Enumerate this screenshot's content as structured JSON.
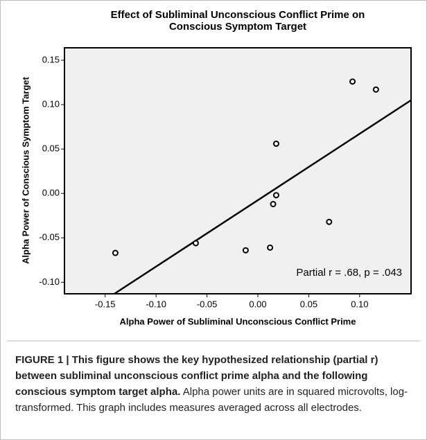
{
  "chart_data": {
    "type": "scatter",
    "title": "Effect of Subliminal Unconscious Conflict Prime on Conscious Symptom Target",
    "xlabel": "Alpha Power of Subliminal Unconscious Conflict  Prime",
    "ylabel": "Alpha Power of Conscious Symptom Target",
    "annotation": "Partial r = .68, p = .043",
    "x": [
      -0.14,
      -0.061,
      -0.012,
      0.012,
      0.015,
      0.018,
      0.018,
      0.07,
      0.093,
      0.116
    ],
    "y": [
      -0.067,
      -0.056,
      -0.064,
      -0.061,
      -0.012,
      -0.002,
      0.056,
      -0.032,
      0.126,
      0.117
    ],
    "fit": {
      "x": [
        -0.141,
        0.1505
      ],
      "y": [
        -0.113,
        0.105
      ]
    },
    "xlim": [
      -0.19,
      0.1505
    ],
    "xticks": [
      {
        "value": -0.15,
        "label": "-0.15"
      },
      {
        "value": -0.1,
        "label": "-0.10"
      },
      {
        "value": -0.05,
        "label": "-0.05"
      },
      {
        "value": 0,
        "label": "0.00"
      },
      {
        "value": 0.05,
        "label": "0.05"
      },
      {
        "value": 0.1,
        "label": "0.10"
      }
    ],
    "ylim": [
      -0.113,
      0.164
    ],
    "yticks": [
      {
        "value": -0.1,
        "label": "-0.10"
      },
      {
        "value": -0.05,
        "label": "-0.05"
      },
      {
        "value": 0,
        "label": "0.00"
      },
      {
        "value": 0.05,
        "label": "0.05"
      },
      {
        "value": 0.1,
        "label": "0.10"
      },
      {
        "value": 0.15,
        "label": "0.15"
      }
    ],
    "color": "#000000",
    "background": "#f0f0f0"
  },
  "caption": {
    "bold": "FIGURE 1 | This figure shows the key hypothesized relationship (partial r) between subliminal unconscious conflict prime alpha and the following conscious symptom target alpha.",
    "text": " Alpha power units are in squared microvolts, log-transformed. This graph includes measures averaged across all electrodes."
  }
}
